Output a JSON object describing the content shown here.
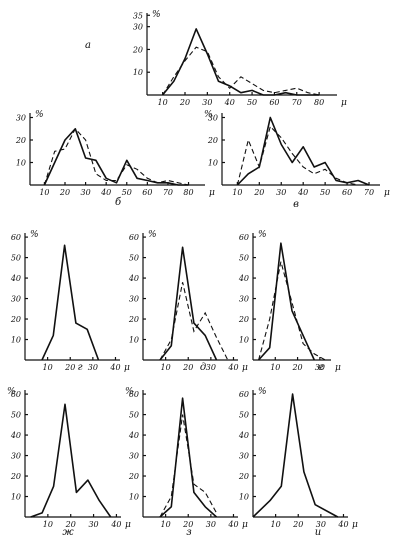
{
  "chart_data": [
    {
      "id": "a",
      "label": "а",
      "type": "line",
      "x_ticks": [
        "10",
        "20",
        "30",
        "40",
        "50",
        "60",
        "70",
        "80"
      ],
      "x_unit": "μ",
      "y_ticks": [
        "10",
        "20",
        "30",
        "35"
      ],
      "y_unit": "%",
      "xlim": [
        3,
        88
      ],
      "ylim": [
        0,
        36
      ],
      "series": [
        {
          "style": "solid",
          "x": [
            10,
            15,
            20,
            25,
            30,
            35,
            40,
            45,
            50,
            55,
            60,
            65,
            70,
            75,
            80
          ],
          "values": [
            0,
            6,
            16,
            29,
            18,
            6,
            4,
            1,
            2,
            0,
            0,
            1,
            0,
            0,
            0
          ]
        },
        {
          "style": "dashed",
          "x": [
            10,
            15,
            20,
            25,
            30,
            35,
            40,
            45,
            50,
            55,
            60,
            65,
            70,
            75,
            80
          ],
          "values": [
            0,
            8,
            15,
            21,
            19,
            8,
            3,
            8,
            5,
            2,
            1,
            2,
            3,
            1,
            0
          ]
        }
      ]
    },
    {
      "id": "b",
      "label": "б",
      "type": "line",
      "x_ticks": [
        "10",
        "20",
        "30",
        "40",
        "50",
        "60",
        "70",
        "80"
      ],
      "x_unit": "μ",
      "y_ticks": [
        "10",
        "20",
        "30"
      ],
      "y_unit": "%",
      "xlim": [
        3,
        88
      ],
      "ylim": [
        0,
        32
      ],
      "series": [
        {
          "style": "solid",
          "x": [
            10,
            15,
            20,
            25,
            30,
            35,
            40,
            45,
            50,
            55,
            60,
            65,
            70,
            75,
            80
          ],
          "values": [
            0,
            10,
            20,
            25,
            12,
            11,
            3,
            1,
            11,
            3,
            2,
            1,
            1,
            0,
            0
          ]
        },
        {
          "style": "dashed",
          "x": [
            10,
            15,
            20,
            25,
            30,
            35,
            40,
            45,
            50,
            55,
            60,
            65,
            70,
            75,
            80
          ],
          "values": [
            0,
            15,
            16,
            25,
            20,
            5,
            2,
            2,
            9,
            7,
            3,
            1,
            2,
            1,
            0
          ]
        }
      ]
    },
    {
      "id": "v",
      "label": "в",
      "type": "line",
      "x_ticks": [
        "10",
        "20",
        "30",
        "40",
        "50",
        "60",
        "70"
      ],
      "x_unit": "μ",
      "y_ticks": [
        "10",
        "20",
        "30"
      ],
      "y_unit": "%",
      "xlim": [
        3,
        75
      ],
      "ylim": [
        0,
        32
      ],
      "series": [
        {
          "style": "solid",
          "x": [
            10,
            15,
            20,
            25,
            30,
            35,
            40,
            45,
            50,
            55,
            60,
            65,
            70
          ],
          "values": [
            0,
            5,
            8,
            30,
            18,
            10,
            17,
            8,
            10,
            2,
            1,
            2,
            0
          ]
        },
        {
          "style": "dashed",
          "x": [
            10,
            15,
            20,
            25,
            30,
            35,
            40,
            45,
            50,
            55,
            60,
            65,
            70
          ],
          "values": [
            0,
            20,
            8,
            26,
            21,
            14,
            8,
            5,
            7,
            3,
            1,
            0,
            0
          ]
        }
      ]
    },
    {
      "id": "g",
      "label": "г",
      "type": "line",
      "x_ticks": [
        "10",
        "20",
        "30",
        "40"
      ],
      "x_unit": "μ",
      "y_ticks": [
        "10",
        "20",
        "30",
        "40",
        "50",
        "60"
      ],
      "y_unit": "%",
      "xlim": [
        0,
        42
      ],
      "ylim": [
        0,
        62
      ],
      "series": [
        {
          "style": "solid",
          "x": [
            7.5,
            12.5,
            17.5,
            22.5,
            27.5,
            32.5
          ],
          "values": [
            0,
            12,
            56,
            18,
            15,
            0
          ]
        }
      ]
    },
    {
      "id": "d",
      "label": "д",
      "type": "line",
      "x_ticks": [
        "10",
        "20",
        "30",
        "40"
      ],
      "x_unit": "μ",
      "y_ticks": [
        "10",
        "20",
        "30",
        "40",
        "50",
        "60"
      ],
      "y_unit": "%",
      "xlim": [
        0,
        42
      ],
      "ylim": [
        0,
        62
      ],
      "series": [
        {
          "style": "solid",
          "x": [
            7.5,
            12.5,
            17.5,
            22.5,
            27.5,
            32.5
          ],
          "values": [
            0,
            7,
            55,
            18,
            12,
            0
          ]
        },
        {
          "style": "dashed",
          "x": [
            7.5,
            12.5,
            17.5,
            22.5,
            27.5,
            32.5,
            37.5
          ],
          "values": [
            0,
            10,
            38,
            14,
            23,
            11,
            0
          ]
        }
      ]
    },
    {
      "id": "e",
      "label": "е",
      "type": "line",
      "x_ticks": [
        "10",
        "20",
        "30"
      ],
      "x_unit": "μ",
      "y_ticks": [
        "10",
        "20",
        "30",
        "40",
        "50",
        "60"
      ],
      "y_unit": "%",
      "xlim": [
        0,
        35
      ],
      "ylim": [
        0,
        62
      ],
      "series": [
        {
          "style": "solid",
          "x": [
            2.5,
            7.5,
            12.5,
            17.5,
            22.5,
            27.5
          ],
          "values": [
            0,
            6,
            57,
            24,
            12,
            0
          ]
        },
        {
          "style": "dashed",
          "x": [
            2.5,
            7.5,
            12.5,
            17.5,
            22.5,
            27.5,
            32.5
          ],
          "values": [
            0,
            20,
            48,
            28,
            8,
            3,
            0
          ]
        }
      ]
    },
    {
      "id": "zh",
      "label": "ж",
      "type": "line",
      "x_ticks": [
        "10",
        "20",
        "30",
        "40"
      ],
      "x_unit": "μ",
      "y_ticks": [
        "10",
        "20",
        "30",
        "40",
        "50",
        "60"
      ],
      "y_unit": "%",
      "xlim": [
        0,
        42
      ],
      "ylim": [
        0,
        62
      ],
      "series": [
        {
          "style": "solid",
          "x": [
            2.5,
            7.5,
            12.5,
            17.5,
            22.5,
            27.5,
            32.5,
            37.5
          ],
          "values": [
            0,
            2,
            15,
            55,
            12,
            18,
            8,
            0
          ]
        }
      ]
    },
    {
      "id": "z",
      "label": "з",
      "type": "line",
      "x_ticks": [
        "10",
        "20",
        "30",
        "40"
      ],
      "x_unit": "μ",
      "y_ticks": [
        "10",
        "20",
        "30",
        "40",
        "50",
        "60"
      ],
      "y_unit": "%",
      "xlim": [
        0,
        42
      ],
      "ylim": [
        0,
        62
      ],
      "series": [
        {
          "style": "solid",
          "x": [
            7.5,
            12.5,
            17.5,
            22.5,
            27.5,
            32.5
          ],
          "values": [
            0,
            5,
            58,
            12,
            5,
            0
          ]
        },
        {
          "style": "dashed",
          "x": [
            7.5,
            12.5,
            17.5,
            22.5,
            27.5,
            32.5
          ],
          "values": [
            0,
            10,
            50,
            16,
            12,
            2
          ]
        }
      ]
    },
    {
      "id": "i",
      "label": "и",
      "type": "line",
      "x_ticks": [
        "10",
        "20",
        "30",
        "40"
      ],
      "x_unit": "μ",
      "y_ticks": [
        "10",
        "20",
        "30",
        "40",
        "50",
        "60"
      ],
      "y_unit": "%",
      "xlim": [
        0,
        42
      ],
      "ylim": [
        0,
        62
      ],
      "series": [
        {
          "style": "solid",
          "x": [
            0,
            7.5,
            12.5,
            17.5,
            22.5,
            27.5,
            37.5
          ],
          "values": [
            0,
            8,
            15,
            60,
            22,
            6,
            0
          ]
        }
      ]
    }
  ]
}
